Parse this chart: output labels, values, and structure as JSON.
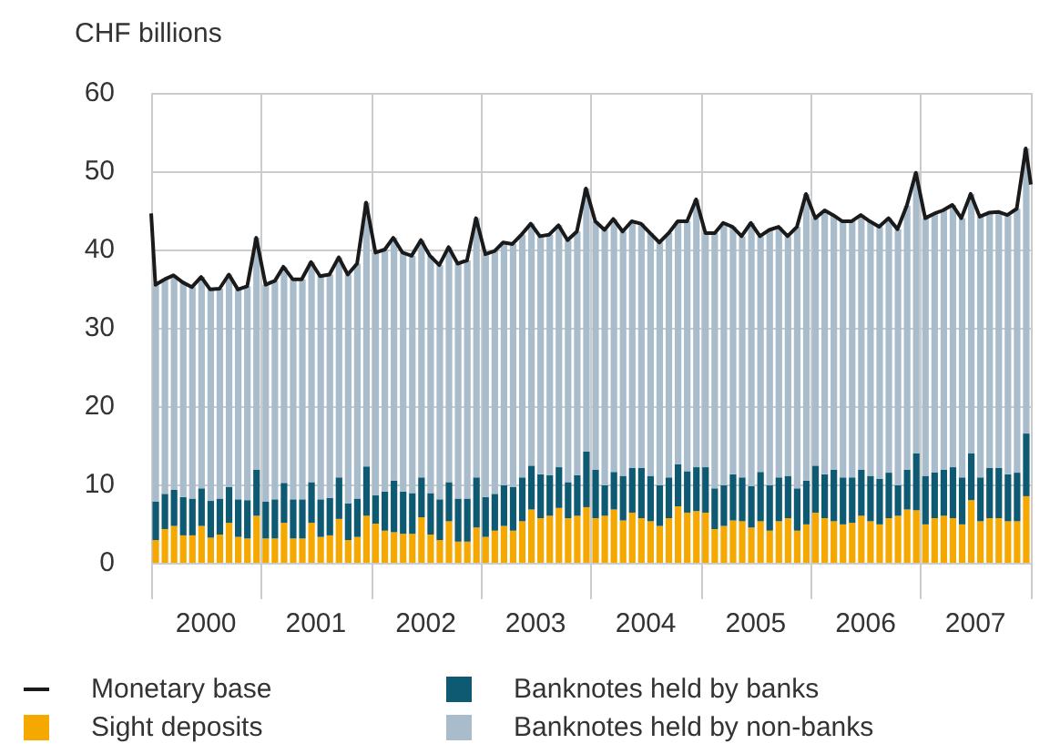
{
  "chart_data": {
    "type": "bar",
    "ylabel": "CHF billions",
    "stacked": true,
    "grid": true,
    "legend": "bottom",
    "marker": "none",
    "xlim": [
      "2000-01-01",
      "2008-01-01"
    ],
    "xticks": [
      {
        "value": "2000-01-01",
        "label": null
      },
      {
        "value": "2000-07-01",
        "label": "2000"
      },
      {
        "value": "2001-01-01",
        "label": null
      },
      {
        "value": "2001-07-01",
        "label": "2001"
      },
      {
        "value": "2002-01-01",
        "label": null
      },
      {
        "value": "2002-07-01",
        "label": "2002"
      },
      {
        "value": "2003-01-01",
        "label": null
      },
      {
        "value": "2003-07-01",
        "label": "2003"
      },
      {
        "value": "2004-01-01",
        "label": null
      },
      {
        "value": "2004-07-01",
        "label": "2004"
      },
      {
        "value": "2005-01-01",
        "label": null
      },
      {
        "value": "2005-07-01",
        "label": "2005"
      },
      {
        "value": "2006-01-01",
        "label": null
      },
      {
        "value": "2006-07-01",
        "label": "2006"
      },
      {
        "value": "2007-01-01",
        "label": null
      },
      {
        "value": "2007-07-01",
        "label": "2007"
      },
      {
        "value": "2008-01-01",
        "label": null
      }
    ],
    "ylim": [
      0,
      60
    ],
    "yticks": [
      0,
      10,
      20,
      30,
      40,
      50,
      60
    ],
    "x": [
      "2000-01-15",
      "2000-02-15",
      "2000-03-15",
      "2000-04-15",
      "2000-05-15",
      "2000-06-15",
      "2000-07-15",
      "2000-08-15",
      "2000-09-15",
      "2000-10-15",
      "2000-11-15",
      "2000-12-15",
      "2001-01-15",
      "2001-02-15",
      "2001-03-15",
      "2001-04-15",
      "2001-05-15",
      "2001-06-15",
      "2001-07-15",
      "2001-08-15",
      "2001-09-15",
      "2001-10-15",
      "2001-11-15",
      "2001-12-15",
      "2002-01-15",
      "2002-02-15",
      "2002-03-15",
      "2002-04-15",
      "2002-05-15",
      "2002-06-15",
      "2002-07-15",
      "2002-08-15",
      "2002-09-15",
      "2002-10-15",
      "2002-11-15",
      "2002-12-15",
      "2003-01-15",
      "2003-02-15",
      "2003-03-15",
      "2003-04-15",
      "2003-05-15",
      "2003-06-15",
      "2003-07-15",
      "2003-08-15",
      "2003-09-15",
      "2003-10-15",
      "2003-11-15",
      "2003-12-15",
      "2004-01-15",
      "2004-02-15",
      "2004-03-15",
      "2004-04-15",
      "2004-05-15",
      "2004-06-15",
      "2004-07-15",
      "2004-08-15",
      "2004-09-15",
      "2004-10-15",
      "2004-11-15",
      "2004-12-15",
      "2005-01-15",
      "2005-02-15",
      "2005-03-15",
      "2005-04-15",
      "2005-05-15",
      "2005-06-15",
      "2005-07-15",
      "2005-08-15",
      "2005-09-15",
      "2005-10-15",
      "2005-11-15",
      "2005-12-15",
      "2006-01-15",
      "2006-02-15",
      "2006-03-15",
      "2006-04-15",
      "2006-05-15",
      "2006-06-15",
      "2006-07-15",
      "2006-08-15",
      "2006-09-15",
      "2006-10-15",
      "2006-11-15",
      "2006-12-15",
      "2007-01-15",
      "2007-02-15",
      "2007-03-15",
      "2007-04-15",
      "2007-05-15",
      "2007-06-15",
      "2007-07-15",
      "2007-08-15",
      "2007-09-15",
      "2007-10-15",
      "2007-11-15",
      "2007-12-15"
    ],
    "series": [
      {
        "name": "Monetary base",
        "type": "line",
        "color": "#1a1a1a",
        "x": [
          "2000-01-01",
          "2000-01-15",
          "2000-02-15",
          "2000-03-15",
          "2000-04-15",
          "2000-05-15",
          "2000-06-15",
          "2000-07-15",
          "2000-08-15",
          "2000-09-15",
          "2000-10-15",
          "2000-11-15",
          "2000-12-15",
          "2001-01-15",
          "2001-02-15",
          "2001-03-15",
          "2001-04-15",
          "2001-05-15",
          "2001-06-15",
          "2001-07-15",
          "2001-08-15",
          "2001-09-15",
          "2001-10-15",
          "2001-11-15",
          "2001-12-15",
          "2002-01-15",
          "2002-02-15",
          "2002-03-15",
          "2002-04-15",
          "2002-05-15",
          "2002-06-15",
          "2002-07-15",
          "2002-08-15",
          "2002-09-15",
          "2002-10-15",
          "2002-11-15",
          "2002-12-15",
          "2003-01-15",
          "2003-02-15",
          "2003-03-15",
          "2003-04-15",
          "2003-05-15",
          "2003-06-15",
          "2003-07-15",
          "2003-08-15",
          "2003-09-15",
          "2003-10-15",
          "2003-11-15",
          "2003-12-15",
          "2004-01-15",
          "2004-02-15",
          "2004-03-15",
          "2004-04-15",
          "2004-05-15",
          "2004-06-15",
          "2004-07-15",
          "2004-08-15",
          "2004-09-15",
          "2004-10-15",
          "2004-11-15",
          "2004-12-15",
          "2005-01-15",
          "2005-02-15",
          "2005-03-15",
          "2005-04-15",
          "2005-05-15",
          "2005-06-15",
          "2005-07-15",
          "2005-08-15",
          "2005-09-15",
          "2005-10-15",
          "2005-11-15",
          "2005-12-15",
          "2006-01-15",
          "2006-02-15",
          "2006-03-15",
          "2006-04-15",
          "2006-05-15",
          "2006-06-15",
          "2006-07-15",
          "2006-08-15",
          "2006-09-15",
          "2006-10-15",
          "2006-11-15",
          "2006-12-15",
          "2007-01-15",
          "2007-02-15",
          "2007-03-15",
          "2007-04-15",
          "2007-05-15",
          "2007-06-15",
          "2007-07-15",
          "2007-08-15",
          "2007-09-15",
          "2007-10-15",
          "2007-11-15",
          "2007-12-15",
          "2008-01-01"
        ],
        "values": [
          44.6,
          35.5,
          36.2,
          36.7,
          35.8,
          35.2,
          36.5,
          34.9,
          35.0,
          36.8,
          34.9,
          35.3,
          41.5,
          35.5,
          36.0,
          37.8,
          36.2,
          36.2,
          38.4,
          36.6,
          36.8,
          39.0,
          36.8,
          38.2,
          46.0,
          39.6,
          40.0,
          41.5,
          39.6,
          39.2,
          41.2,
          39.2,
          38.0,
          40.3,
          38.2,
          38.6,
          44.0,
          39.4,
          39.8,
          40.9,
          40.7,
          41.9,
          43.3,
          41.7,
          41.9,
          43.1,
          41.2,
          42.3,
          47.8,
          43.6,
          42.5,
          43.9,
          42.3,
          43.6,
          43.3,
          42.1,
          40.9,
          42.1,
          43.6,
          43.6,
          46.4,
          42.1,
          42.1,
          43.4,
          42.9,
          41.7,
          43.4,
          41.7,
          42.5,
          42.9,
          41.7,
          42.9,
          47.1,
          44.0,
          45.0,
          44.4,
          43.6,
          43.6,
          44.4,
          43.6,
          42.9,
          44.0,
          42.6,
          45.6,
          49.8,
          44.0,
          44.6,
          45.0,
          45.7,
          44.0,
          47.1,
          44.2,
          44.7,
          44.8,
          44.4,
          45.2,
          52.9,
          48.3
        ]
      },
      {
        "name": "Sight deposits",
        "color": "#f5a800",
        "values": [
          2.9,
          4.3,
          4.7,
          3.5,
          3.5,
          4.7,
          3.2,
          3.6,
          5.1,
          3.3,
          3.1,
          6.0,
          3.1,
          3.1,
          5.1,
          3.1,
          3.1,
          5.1,
          3.3,
          3.5,
          5.6,
          2.9,
          3.3,
          6.0,
          5.0,
          4.1,
          3.9,
          3.7,
          3.7,
          5.8,
          3.6,
          2.9,
          5.3,
          2.7,
          2.7,
          4.5,
          3.3,
          4.1,
          4.7,
          4.1,
          5.3,
          6.8,
          5.7,
          6.0,
          7.0,
          5.7,
          6.0,
          7.1,
          5.7,
          6.0,
          6.8,
          5.4,
          6.4,
          5.7,
          5.3,
          4.7,
          5.7,
          7.2,
          6.4,
          6.6,
          6.4,
          4.3,
          4.7,
          5.4,
          5.3,
          4.5,
          5.3,
          4.1,
          5.3,
          5.7,
          4.1,
          4.9,
          6.4,
          5.7,
          5.3,
          4.9,
          5.1,
          6.0,
          5.3,
          4.9,
          5.7,
          6.0,
          6.8,
          6.7,
          4.9,
          5.7,
          6.0,
          5.7,
          4.9,
          8.0,
          5.3,
          5.7,
          5.7,
          5.3,
          5.3,
          8.5
        ]
      },
      {
        "name": "Banknotes held by banks",
        "color": "#0e5a73",
        "values": [
          4.9,
          4.5,
          4.6,
          4.9,
          4.7,
          4.8,
          4.7,
          4.6,
          4.6,
          4.8,
          4.9,
          5.9,
          4.7,
          5.0,
          5.1,
          5.0,
          5.0,
          5.2,
          4.8,
          4.8,
          5.3,
          4.7,
          4.9,
          6.3,
          3.6,
          5.0,
          6.6,
          5.4,
          5.2,
          5.1,
          5.3,
          5.2,
          5.0,
          5.5,
          5.5,
          6.4,
          5.1,
          4.7,
          5.2,
          5.6,
          5.6,
          5.6,
          5.6,
          5.2,
          5.2,
          4.6,
          5.2,
          7.1,
          6.2,
          3.9,
          4.8,
          5.7,
          5.7,
          6.4,
          5.8,
          5.2,
          5.2,
          5.4,
          5.3,
          5.6,
          5.8,
          5.2,
          5.2,
          5.9,
          5.6,
          5.3,
          6.3,
          5.8,
          5.6,
          5.4,
          5.4,
          5.6,
          6.0,
          5.6,
          6.6,
          6.0,
          5.8,
          5.9,
          5.8,
          5.8,
          5.8,
          3.9,
          5.1,
          7.3,
          6.2,
          5.8,
          5.9,
          6.5,
          6.0,
          6.0,
          5.6,
          6.4,
          6.4,
          6.0,
          6.2,
          8.0
        ]
      },
      {
        "name": "Banknotes held by non-banks",
        "color": "#a8bccb",
        "values": [
          27.7,
          27.4,
          27.4,
          27.4,
          27.0,
          27.0,
          27.0,
          26.8,
          27.1,
          26.8,
          27.3,
          29.6,
          27.7,
          27.9,
          27.6,
          28.1,
          28.1,
          28.1,
          28.5,
          28.5,
          28.1,
          29.2,
          30.0,
          33.7,
          31.0,
          30.9,
          31.0,
          30.5,
          30.3,
          30.3,
          30.3,
          29.9,
          30.0,
          30.0,
          30.4,
          33.1,
          31.0,
          31.0,
          31.0,
          31.0,
          31.0,
          30.9,
          30.4,
          30.7,
          30.9,
          30.9,
          31.1,
          33.6,
          31.7,
          32.6,
          32.3,
          31.2,
          31.5,
          31.2,
          31.0,
          31.0,
          31.2,
          31.0,
          31.9,
          34.2,
          29.9,
          32.6,
          33.5,
          31.6,
          30.8,
          33.6,
          30.1,
          32.6,
          32.0,
          30.6,
          33.4,
          36.6,
          31.6,
          33.7,
          32.5,
          32.7,
          32.7,
          32.5,
          32.5,
          32.2,
          32.5,
          32.7,
          33.7,
          35.8,
          32.9,
          33.1,
          33.1,
          33.5,
          33.1,
          33.1,
          33.3,
          32.6,
          32.7,
          33.1,
          33.7,
          36.4
        ]
      }
    ]
  }
}
